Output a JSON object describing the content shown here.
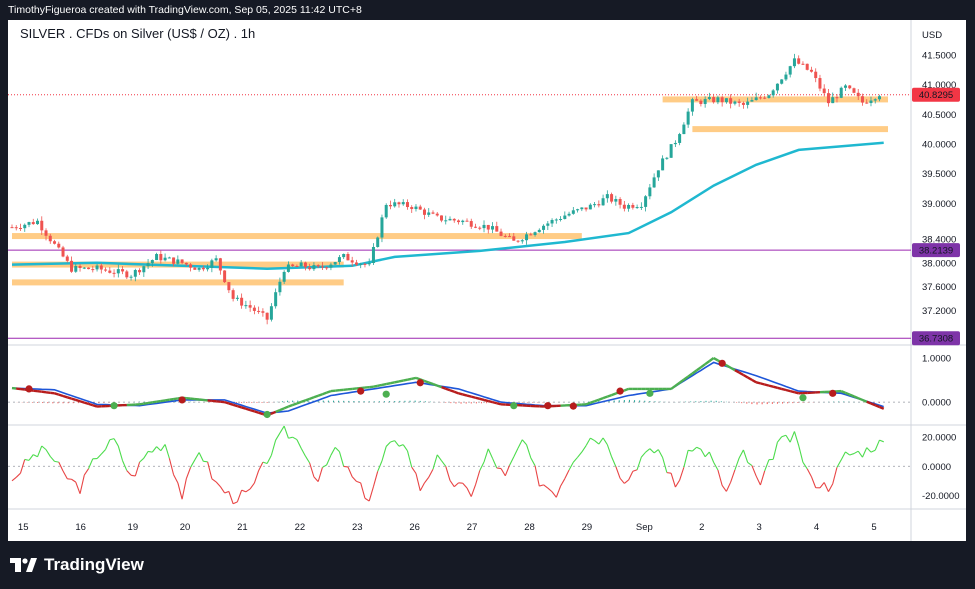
{
  "header": {
    "credit": "TimothyFigueroa created with TradingView.com, Sep 05, 2025 11:42 UTC+8"
  },
  "chart": {
    "title": "SILVER . CFDs on Silver (US$ / OZ) . 1h",
    "currency_label": "USD"
  },
  "footer": {
    "brand": "TradingView"
  },
  "colors": {
    "up": "#26a69a",
    "down": "#ef5350",
    "ma": "#1fb8d0",
    "zone": "#ffc779",
    "hline": "#9c27b0",
    "fast": "#2e7d32",
    "slow": "#1e56d8",
    "osc_up": "#4ddc4d",
    "osc_down": "#e84545",
    "price_badge": "#f23645",
    "level_badge": "#7e34a8"
  },
  "chart_data": [
    {
      "type": "candlestick",
      "pane": "price",
      "title": "SILVER . CFDs on Silver (US$ / OZ) . 1h",
      "x_labels": [
        "15",
        "16",
        "19",
        "20",
        "21",
        "22",
        "23",
        "26",
        "27",
        "28",
        "29",
        "Sep",
        "2",
        "3",
        "4",
        "5"
      ],
      "y_ticks": [
        "41.5000",
        "41.0000",
        "40.5000",
        "40.0000",
        "39.5000",
        "39.0000",
        "38.4000",
        "38.0000",
        "37.6000",
        "37.2000"
      ],
      "y_range": [
        36.65,
        41.75
      ],
      "last_price": "40.8295",
      "horizontal_levels": [
        "38.2139",
        "36.7308"
      ],
      "price_path": [
        [
          0,
          38.6
        ],
        [
          6,
          38.7
        ],
        [
          10,
          38.3
        ],
        [
          14,
          37.9
        ],
        [
          20,
          37.9
        ],
        [
          28,
          37.8
        ],
        [
          34,
          38.1
        ],
        [
          40,
          38.0
        ],
        [
          44,
          37.9
        ],
        [
          48,
          38.05
        ],
        [
          52,
          37.4
        ],
        [
          56,
          37.25
        ],
        [
          60,
          37.05
        ],
        [
          64,
          37.9
        ],
        [
          68,
          37.95
        ],
        [
          72,
          37.9
        ],
        [
          78,
          38.1
        ],
        [
          84,
          37.95
        ],
        [
          88,
          39.0
        ],
        [
          94,
          38.95
        ],
        [
          100,
          38.75
        ],
        [
          106,
          38.7
        ],
        [
          112,
          38.6
        ],
        [
          118,
          38.35
        ],
        [
          124,
          38.6
        ],
        [
          130,
          38.8
        ],
        [
          136,
          38.95
        ],
        [
          140,
          39.1
        ],
        [
          144,
          38.95
        ],
        [
          148,
          39.0
        ],
        [
          152,
          39.6
        ],
        [
          156,
          40.05
        ],
        [
          160,
          40.7
        ],
        [
          166,
          40.75
        ],
        [
          172,
          40.65
        ],
        [
          178,
          40.85
        ],
        [
          184,
          41.4
        ],
        [
          188,
          41.2
        ],
        [
          192,
          40.7
        ],
        [
          196,
          40.95
        ],
        [
          200,
          40.7
        ],
        [
          204,
          40.85
        ]
      ],
      "ma_path": [
        [
          0,
          37.97
        ],
        [
          20,
          38.0
        ],
        [
          40,
          37.95
        ],
        [
          60,
          37.9
        ],
        [
          80,
          37.95
        ],
        [
          90,
          38.1
        ],
        [
          110,
          38.2
        ],
        [
          130,
          38.35
        ],
        [
          145,
          38.5
        ],
        [
          155,
          38.85
        ],
        [
          165,
          39.3
        ],
        [
          175,
          39.65
        ],
        [
          185,
          39.9
        ],
        [
          205,
          40.02
        ]
      ],
      "zones": [
        {
          "x0": 0,
          "x1": 134,
          "y": 38.45
        },
        {
          "x0": 0,
          "x1": 78,
          "y": 37.97
        },
        {
          "x0": 0,
          "x1": 78,
          "y": 37.67
        },
        {
          "x0": 153,
          "x1": 206,
          "y": 40.75
        },
        {
          "x0": 160,
          "x1": 206,
          "y": 40.25
        }
      ]
    },
    {
      "type": "line",
      "pane": "momentum",
      "y_ticks": [
        "1.0000",
        "0.0000"
      ],
      "y_range": [
        -0.45,
        1.25
      ],
      "series": [
        {
          "values": [
            [
              0,
              0.32
            ],
            [
              10,
              0.2
            ],
            [
              20,
              -0.1
            ],
            [
              30,
              -0.05
            ],
            [
              40,
              0.1
            ],
            [
              50,
              0.0
            ],
            [
              60,
              -0.3
            ],
            [
              65,
              -0.1
            ],
            [
              75,
              0.25
            ],
            [
              85,
              0.35
            ],
            [
              95,
              0.55
            ],
            [
              105,
              0.2
            ],
            [
              115,
              -0.05
            ],
            [
              125,
              -0.1
            ],
            [
              135,
              -0.05
            ],
            [
              145,
              0.3
            ],
            [
              155,
              0.3
            ],
            [
              165,
              1.0
            ],
            [
              175,
              0.45
            ],
            [
              185,
              0.2
            ],
            [
              195,
              0.25
            ],
            [
              205,
              -0.15
            ]
          ]
        },
        {
          "values": [
            [
              0,
              0.32
            ],
            [
              10,
              0.28
            ],
            [
              20,
              -0.05
            ],
            [
              30,
              -0.08
            ],
            [
              40,
              0.05
            ],
            [
              50,
              0.05
            ],
            [
              60,
              -0.25
            ],
            [
              65,
              -0.2
            ],
            [
              75,
              0.15
            ],
            [
              85,
              0.3
            ],
            [
              95,
              0.45
            ],
            [
              105,
              0.3
            ],
            [
              115,
              0.0
            ],
            [
              125,
              -0.08
            ],
            [
              135,
              -0.08
            ],
            [
              145,
              0.15
            ],
            [
              155,
              0.3
            ],
            [
              165,
              0.9
            ],
            [
              175,
              0.6
            ],
            [
              185,
              0.25
            ],
            [
              195,
              0.2
            ],
            [
              205,
              -0.1
            ]
          ]
        }
      ],
      "crossovers": [
        {
          "x": 4,
          "v": 0.3,
          "dir": "down"
        },
        {
          "x": 24,
          "v": -0.08,
          "dir": "up"
        },
        {
          "x": 40,
          "v": 0.05,
          "dir": "down"
        },
        {
          "x": 60,
          "v": -0.28,
          "dir": "up"
        },
        {
          "x": 82,
          "v": 0.25,
          "dir": "down"
        },
        {
          "x": 88,
          "v": 0.18,
          "dir": "up"
        },
        {
          "x": 96,
          "v": 0.44,
          "dir": "down"
        },
        {
          "x": 118,
          "v": -0.08,
          "dir": "up"
        },
        {
          "x": 126,
          "v": -0.08,
          "dir": "down"
        },
        {
          "x": 132,
          "v": -0.09,
          "dir": "down"
        },
        {
          "x": 143,
          "v": 0.25,
          "dir": "down"
        },
        {
          "x": 150,
          "v": 0.2,
          "dir": "up"
        },
        {
          "x": 167,
          "v": 0.88,
          "dir": "down"
        },
        {
          "x": 186,
          "v": 0.1,
          "dir": "up"
        },
        {
          "x": 193,
          "v": 0.2,
          "dir": "down"
        }
      ]
    },
    {
      "type": "line",
      "pane": "oscillator",
      "y_ticks": [
        "20.0000",
        "0.0000",
        "-20.0000"
      ],
      "y_range": [
        -28,
        27
      ],
      "series": [
        {
          "values": [
            [
              0,
              -10
            ],
            [
              4,
              5
            ],
            [
              8,
              12
            ],
            [
              12,
              -5
            ],
            [
              16,
              -15
            ],
            [
              20,
              8
            ],
            [
              24,
              18
            ],
            [
              28,
              -8
            ],
            [
              32,
              10
            ],
            [
              36,
              16
            ],
            [
              40,
              -20
            ],
            [
              44,
              12
            ],
            [
              48,
              -12
            ],
            [
              52,
              -22
            ],
            [
              56,
              -18
            ],
            [
              60,
              5
            ],
            [
              64,
              24
            ],
            [
              68,
              16
            ],
            [
              72,
              -10
            ],
            [
              76,
              12
            ],
            [
              80,
              -8
            ],
            [
              84,
              -22
            ],
            [
              88,
              12
            ],
            [
              92,
              18
            ],
            [
              96,
              -15
            ],
            [
              100,
              5
            ],
            [
              104,
              -12
            ],
            [
              108,
              -18
            ],
            [
              112,
              10
            ],
            [
              116,
              -8
            ],
            [
              120,
              18
            ],
            [
              124,
              -10
            ],
            [
              128,
              -18
            ],
            [
              132,
              6
            ],
            [
              136,
              20
            ],
            [
              140,
              18
            ],
            [
              144,
              -12
            ],
            [
              148,
              6
            ],
            [
              152,
              12
            ],
            [
              156,
              -14
            ],
            [
              160,
              14
            ],
            [
              164,
              8
            ],
            [
              168,
              -18
            ],
            [
              172,
              10
            ],
            [
              176,
              -14
            ],
            [
              180,
              16
            ],
            [
              184,
              20
            ],
            [
              188,
              -10
            ],
            [
              192,
              -14
            ],
            [
              196,
              8
            ],
            [
              200,
              10
            ],
            [
              204,
              16
            ]
          ]
        }
      ]
    }
  ]
}
